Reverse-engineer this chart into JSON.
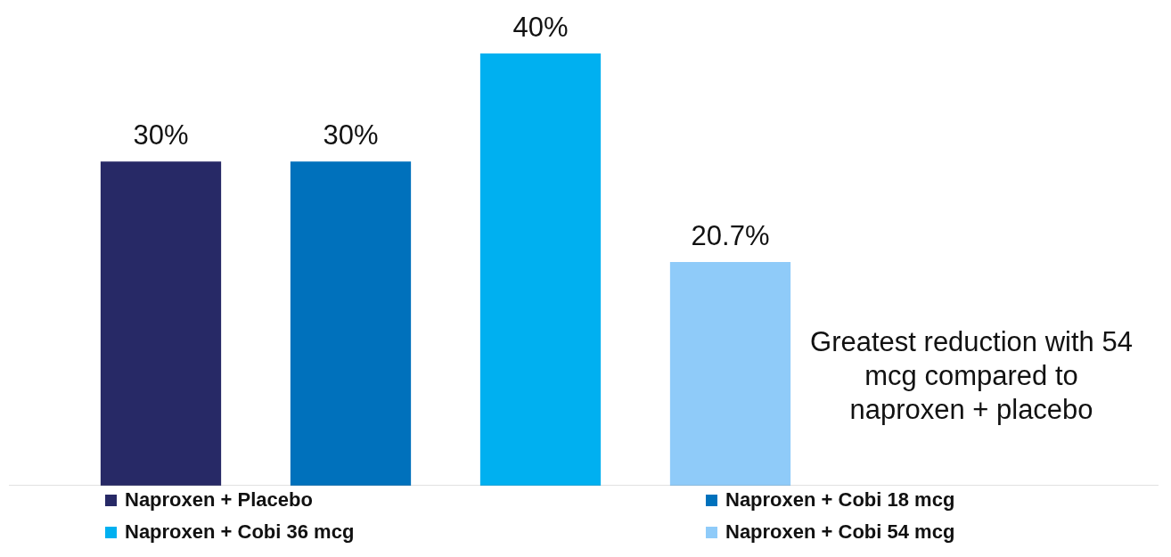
{
  "chart_data": {
    "type": "bar",
    "categories": [
      null,
      null,
      null,
      null
    ],
    "series": [
      {
        "name": "Naproxen + Placebo",
        "color": "#272966",
        "values": [
          30,
          null,
          null,
          null
        ],
        "value_labels": [
          "30%",
          null,
          null,
          null
        ]
      },
      {
        "name": "Naproxen + Cobi 18 mcg",
        "color": "#0071bc",
        "values": [
          null,
          30,
          null,
          null
        ],
        "value_labels": [
          null,
          "30%",
          null,
          null
        ]
      },
      {
        "name": "Naproxen + Cobi 36 mcg",
        "color": "#00b0f0",
        "values": [
          null,
          null,
          40,
          null
        ],
        "value_labels": [
          null,
          null,
          "40%",
          null
        ]
      },
      {
        "name": "Naproxen + Cobi 54 mcg",
        "color": "#8fcbf9",
        "values": [
          null,
          null,
          null,
          20.7
        ],
        "value_labels": [
          null,
          null,
          null,
          "20.7%"
        ]
      }
    ],
    "stacked": true,
    "grid": false,
    "legend": "bottom",
    "tick_labels": false,
    "annotations": [
      "Greatest reduction with 54 mcg compared to naproxen + placebo"
    ]
  }
}
